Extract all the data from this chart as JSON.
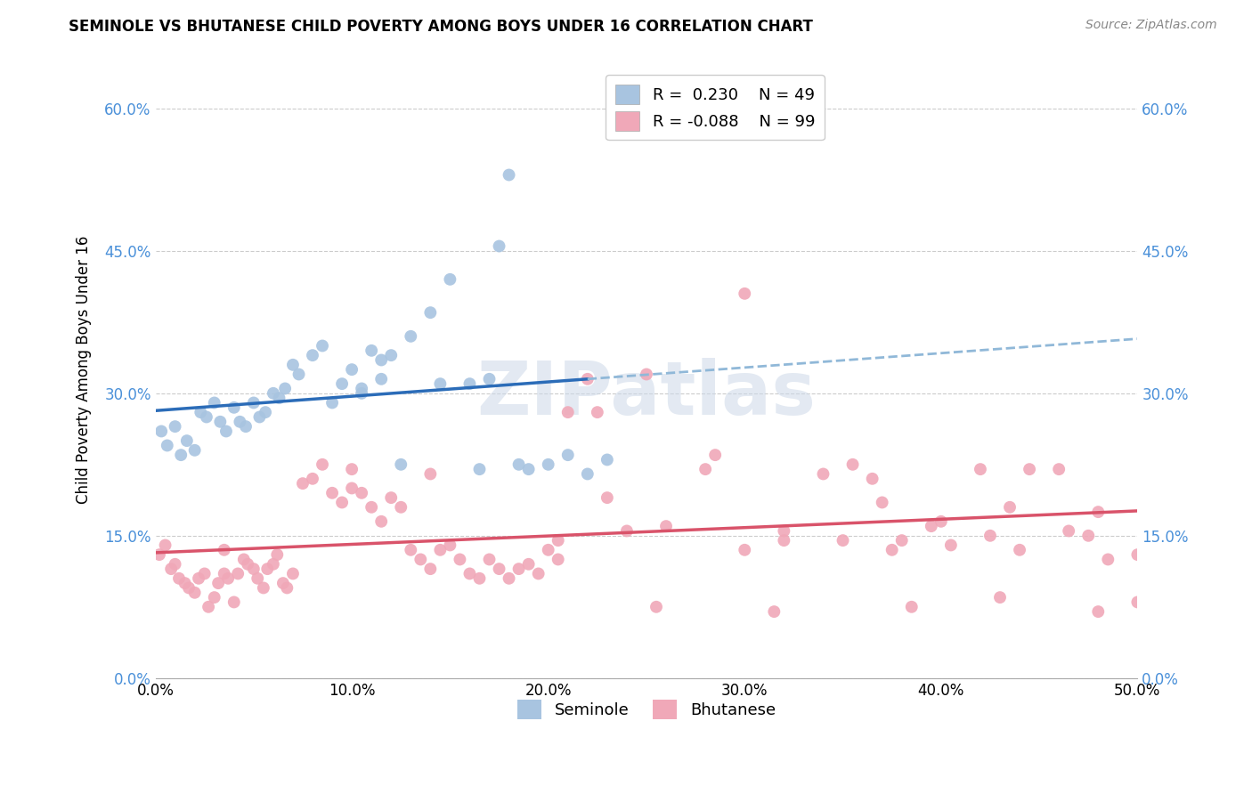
{
  "title": "SEMINOLE VS BHUTANESE CHILD POVERTY AMONG BOYS UNDER 16 CORRELATION CHART",
  "source": "Source: ZipAtlas.com",
  "ylabel": "Child Poverty Among Boys Under 16",
  "ylabel_vals": [
    0.0,
    15.0,
    30.0,
    45.0,
    60.0
  ],
  "xlabel_vals": [
    0.0,
    10.0,
    20.0,
    30.0,
    40.0,
    50.0
  ],
  "xlim": [
    0,
    50
  ],
  "ylim": [
    0,
    65
  ],
  "seminole_R": "0.230",
  "seminole_N": "49",
  "bhutanese_R": "-0.088",
  "bhutanese_N": "99",
  "seminole_color": "#a8c4e0",
  "bhutanese_color": "#f0a8b8",
  "seminole_line_color": "#2b6cb8",
  "bhutanese_line_color": "#d9536a",
  "seminole_dashed_color": "#90b8d8",
  "watermark": "ZIPatlas",
  "seminole_x": [
    0.3,
    0.6,
    1.0,
    1.3,
    1.6,
    2.0,
    2.3,
    2.6,
    3.0,
    3.3,
    3.6,
    4.0,
    4.3,
    4.6,
    5.0,
    5.3,
    5.6,
    6.0,
    6.3,
    6.6,
    7.0,
    7.3,
    8.0,
    8.5,
    9.0,
    9.5,
    10.0,
    10.5,
    11.0,
    11.5,
    12.0,
    13.0,
    14.0,
    15.0,
    16.0,
    17.0,
    17.5,
    18.0,
    19.0,
    20.0,
    21.0,
    22.0,
    23.0,
    10.5,
    11.5,
    12.5,
    14.5,
    16.5,
    18.5
  ],
  "seminole_y": [
    26.0,
    24.5,
    26.5,
    23.5,
    25.0,
    24.0,
    28.0,
    27.5,
    29.0,
    27.0,
    26.0,
    28.5,
    27.0,
    26.5,
    29.0,
    27.5,
    28.0,
    30.0,
    29.5,
    30.5,
    33.0,
    32.0,
    34.0,
    35.0,
    29.0,
    31.0,
    32.5,
    30.0,
    34.5,
    33.5,
    34.0,
    36.0,
    38.5,
    42.0,
    31.0,
    31.5,
    45.5,
    53.0,
    22.0,
    22.5,
    23.5,
    21.5,
    23.0,
    30.5,
    31.5,
    22.5,
    31.0,
    22.0,
    22.5
  ],
  "bhutanese_x": [
    0.2,
    0.5,
    0.8,
    1.0,
    1.2,
    1.5,
    1.7,
    2.0,
    2.2,
    2.5,
    2.7,
    3.0,
    3.2,
    3.5,
    3.7,
    4.0,
    4.2,
    4.5,
    4.7,
    5.0,
    5.2,
    5.5,
    5.7,
    6.0,
    6.2,
    6.5,
    6.7,
    7.0,
    7.5,
    8.0,
    8.5,
    9.0,
    9.5,
    10.0,
    10.5,
    11.0,
    11.5,
    12.0,
    12.5,
    13.0,
    13.5,
    14.0,
    14.5,
    15.0,
    15.5,
    16.0,
    16.5,
    17.0,
    17.5,
    18.0,
    18.5,
    19.0,
    19.5,
    20.0,
    20.5,
    21.0,
    22.0,
    23.0,
    24.0,
    25.0,
    26.0,
    28.0,
    30.0,
    32.0,
    34.0,
    35.0,
    37.0,
    38.0,
    40.0,
    42.0,
    44.0,
    46.0,
    48.0,
    50.0,
    3.5,
    10.0,
    14.0,
    22.5,
    30.0,
    35.5,
    37.5,
    40.5,
    42.5,
    44.5,
    46.5,
    48.5,
    28.5,
    32.0,
    36.5,
    39.5,
    43.5,
    47.5,
    20.5,
    25.5,
    31.5,
    38.5,
    43.0,
    48.0,
    50.0
  ],
  "bhutanese_y": [
    13.0,
    14.0,
    11.5,
    12.0,
    10.5,
    10.0,
    9.5,
    9.0,
    10.5,
    11.0,
    7.5,
    8.5,
    10.0,
    11.0,
    10.5,
    8.0,
    11.0,
    12.5,
    12.0,
    11.5,
    10.5,
    9.5,
    11.5,
    12.0,
    13.0,
    10.0,
    9.5,
    11.0,
    20.5,
    21.0,
    22.5,
    19.5,
    18.5,
    20.0,
    19.5,
    18.0,
    16.5,
    19.0,
    18.0,
    13.5,
    12.5,
    11.5,
    13.5,
    14.0,
    12.5,
    11.0,
    10.5,
    12.5,
    11.5,
    10.5,
    11.5,
    12.0,
    11.0,
    13.5,
    12.5,
    28.0,
    31.5,
    19.0,
    15.5,
    32.0,
    16.0,
    22.0,
    40.5,
    15.5,
    21.5,
    14.5,
    18.5,
    14.5,
    16.5,
    22.0,
    13.5,
    22.0,
    17.5,
    13.0,
    13.5,
    22.0,
    21.5,
    28.0,
    13.5,
    22.5,
    13.5,
    14.0,
    15.0,
    22.0,
    15.5,
    12.5,
    23.5,
    14.5,
    21.0,
    16.0,
    18.0,
    15.0,
    14.5,
    7.5,
    7.0,
    7.5,
    8.5,
    7.0,
    8.0
  ]
}
